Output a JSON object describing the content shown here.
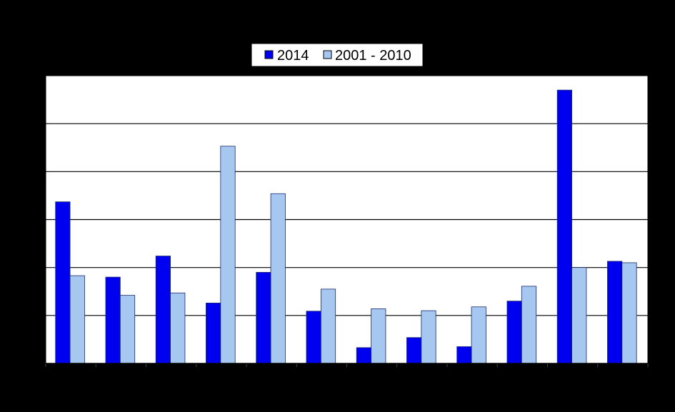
{
  "chart_data": {
    "type": "bar",
    "categories": [
      "",
      "",
      "",
      "",
      "",
      "",
      "",
      "",
      "",
      "",
      "",
      ""
    ],
    "series": [
      {
        "name": "2014",
        "color": "#0000f0",
        "values": [
          3.37,
          1.8,
          2.24,
          1.26,
          1.9,
          1.09,
          0.33,
          0.54,
          0.35,
          1.3,
          5.7,
          2.13
        ]
      },
      {
        "name": "2001 - 2010",
        "color": "#a6c8f0",
        "values": [
          1.83,
          1.42,
          1.47,
          4.53,
          3.54,
          1.55,
          1.14,
          1.1,
          1.18,
          1.61,
          2.0,
          2.1
        ]
      }
    ],
    "ylim": [
      0,
      6
    ],
    "grid": true,
    "legend_position": "top-center",
    "title": "",
    "xlabel": "",
    "ylabel": ""
  }
}
